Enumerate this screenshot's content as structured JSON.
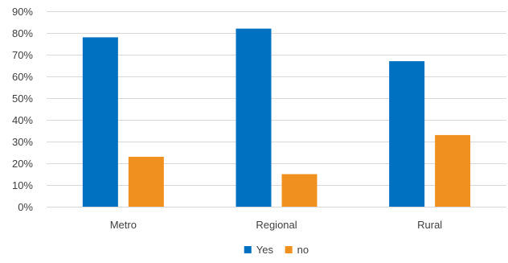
{
  "chart_data": {
    "type": "bar",
    "categories": [
      "Metro",
      "Regional",
      "Rural"
    ],
    "series": [
      {
        "name": "Yes",
        "values": [
          78,
          82,
          67
        ],
        "color": "#0070C0"
      },
      {
        "name": "no",
        "values": [
          23,
          15,
          33
        ],
        "color": "#F0901E"
      }
    ],
    "ylim": [
      0,
      90
    ],
    "yticks": [
      0,
      10,
      20,
      30,
      40,
      50,
      60,
      70,
      80,
      90
    ],
    "ytick_labels": [
      "0%",
      "10%",
      "20%",
      "30%",
      "40%",
      "50%",
      "60%",
      "70%",
      "80%",
      "90%"
    ],
    "grid": true,
    "legend": "bottom-center",
    "gridline_color": "#D9D9D9",
    "axis_color": "#D9D9D9"
  }
}
